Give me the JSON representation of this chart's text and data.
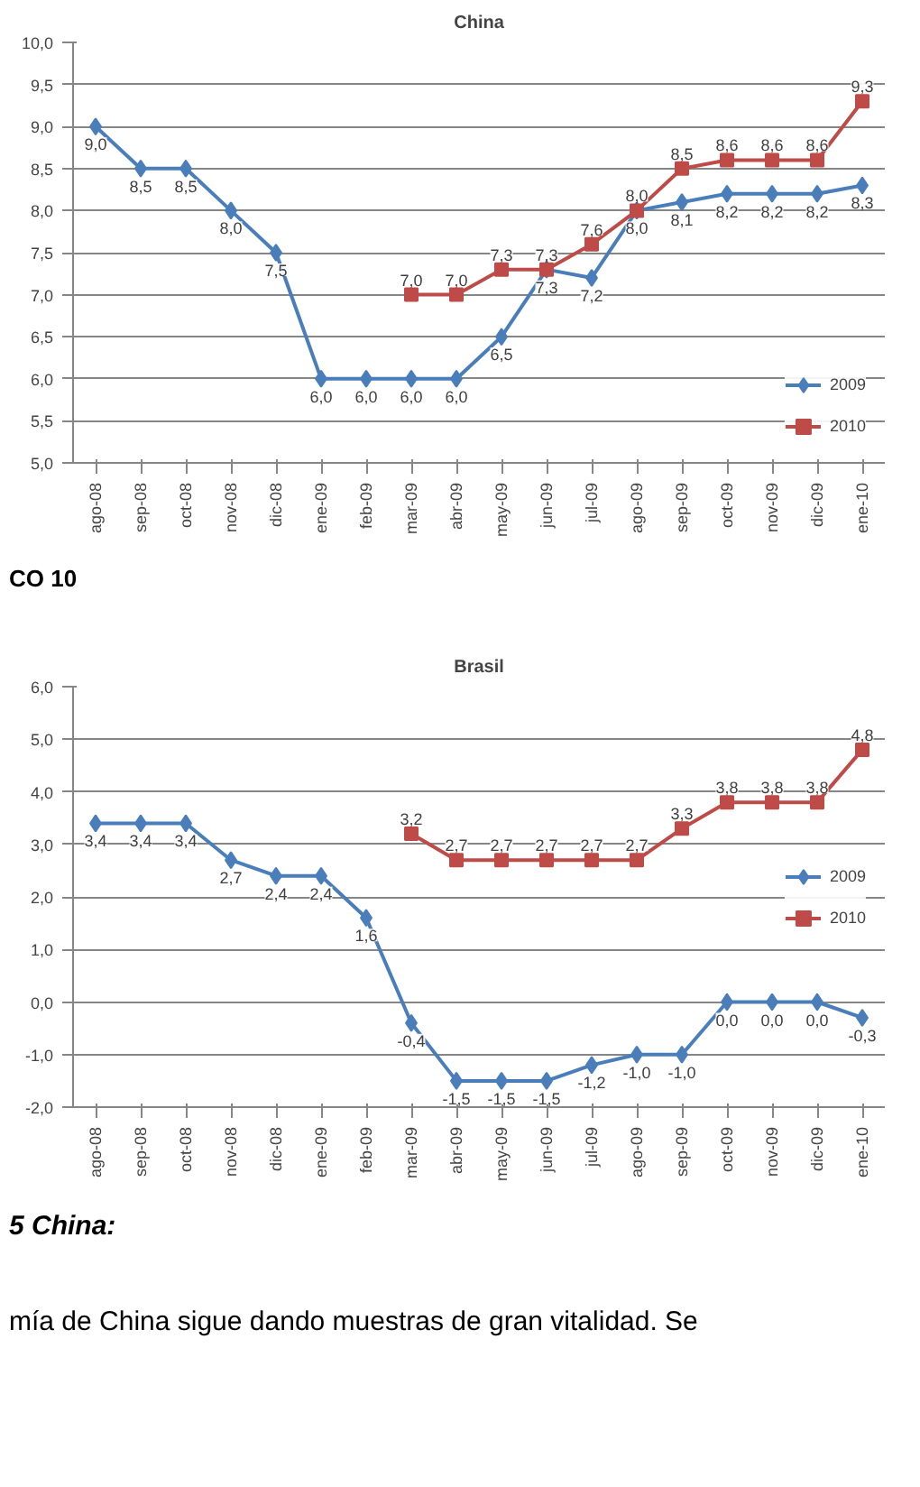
{
  "chart_data": [
    {
      "type": "line",
      "title": "China",
      "categories": [
        "ago-08",
        "sep-08",
        "oct-08",
        "nov-08",
        "dic-08",
        "ene-09",
        "feb-09",
        "mar-09",
        "abr-09",
        "may-09",
        "jun-09",
        "jul-09",
        "ago-09",
        "sep-09",
        "oct-09",
        "nov-09",
        "dic-09",
        "ene-10"
      ],
      "series": [
        {
          "name": "2009",
          "color": "#4a7ebb",
          "marker": "diamond",
          "values": [
            9.0,
            8.5,
            8.5,
            8.0,
            7.5,
            6.0,
            6.0,
            6.0,
            6.0,
            6.5,
            7.3,
            7.2,
            8.0,
            8.1,
            8.2,
            8.2,
            8.2,
            8.3
          ],
          "value_labels": [
            "9,0",
            "8,5",
            "8,5",
            "8,0",
            "7,5",
            "6,0",
            "6,0",
            "6,0",
            "6,0",
            "6,5",
            "7,3",
            "7,2",
            "8,0",
            "8,1",
            "8,2",
            "8,2",
            "8,2",
            "8,3"
          ]
        },
        {
          "name": "2010",
          "color": "#be4b48",
          "marker": "square",
          "values": [
            null,
            null,
            null,
            null,
            null,
            null,
            null,
            7.0,
            7.0,
            7.3,
            7.3,
            7.6,
            8.0,
            8.5,
            8.6,
            8.6,
            8.6,
            9.3
          ],
          "value_labels": [
            null,
            null,
            null,
            null,
            null,
            null,
            null,
            "7,0",
            "7,0",
            "7,3",
            "7,3",
            "7,6",
            "8,0",
            "8,5",
            "8,6",
            "8,6",
            "8,6",
            "9,3"
          ]
        }
      ],
      "ylim": [
        5.0,
        10.0
      ],
      "yticks": [
        {
          "value": 5.0,
          "label": "5,0"
        },
        {
          "value": 5.5,
          "label": "5,5"
        },
        {
          "value": 6.0,
          "label": "6,0"
        },
        {
          "value": 6.5,
          "label": "6,5"
        },
        {
          "value": 7.0,
          "label": "7,0"
        },
        {
          "value": 7.5,
          "label": "7,5"
        },
        {
          "value": 8.0,
          "label": "8,0"
        },
        {
          "value": 8.5,
          "label": "8,5"
        },
        {
          "value": 9.0,
          "label": "9,0"
        },
        {
          "value": 9.5,
          "label": "9,5"
        },
        {
          "value": 10.0,
          "label": "10,0"
        }
      ],
      "grid": "y",
      "legend": "bottom right",
      "annotations": [
        "CO 10"
      ]
    },
    {
      "type": "line",
      "title": "Brasil",
      "categories": [
        "ago-08",
        "sep-08",
        "oct-08",
        "nov-08",
        "dic-08",
        "ene-09",
        "feb-09",
        "mar-09",
        "abr-09",
        "may-09",
        "jun-09",
        "jul-09",
        "ago-09",
        "sep-09",
        "oct-09",
        "nov-09",
        "dic-09",
        "ene-10"
      ],
      "series": [
        {
          "name": "2009",
          "color": "#4a7ebb",
          "marker": "diamond",
          "values": [
            3.4,
            3.4,
            3.4,
            2.7,
            2.4,
            2.4,
            1.6,
            -0.4,
            -1.5,
            -1.5,
            -1.5,
            -1.2,
            -1.0,
            -1.0,
            0.0,
            0.0,
            0.0,
            -0.3
          ],
          "value_labels": [
            "3,4",
            "3,4",
            "3,4",
            "2,7",
            "2,4",
            "2,4",
            "1,6",
            "-0,4",
            "-1,5",
            "-1,5",
            "-1,5",
            "-1,2",
            "-1,0",
            "-1,0",
            "0,0",
            "0,0",
            "0,0",
            "-0,3"
          ]
        },
        {
          "name": "2010",
          "color": "#be4b48",
          "marker": "square",
          "values": [
            null,
            null,
            null,
            null,
            null,
            null,
            null,
            3.2,
            2.7,
            2.7,
            2.7,
            2.7,
            2.7,
            3.3,
            3.8,
            3.8,
            3.8,
            4.8
          ],
          "value_labels": [
            null,
            null,
            null,
            null,
            null,
            null,
            null,
            "3,2",
            "2,7",
            "2,7",
            "2,7",
            "2,7",
            "2,7",
            "3,3",
            "3,8",
            "3,8",
            "3,8",
            "4,8"
          ]
        }
      ],
      "ylim": [
        -2.0,
        6.0
      ],
      "yticks": [
        {
          "value": -2.0,
          "label": "-2,0"
        },
        {
          "value": -1.0,
          "label": "-1,0"
        },
        {
          "value": 0.0,
          "label": "0,0"
        },
        {
          "value": 1.0,
          "label": "1,0"
        },
        {
          "value": 2.0,
          "label": "2,0"
        },
        {
          "value": 3.0,
          "label": "3,0"
        },
        {
          "value": 4.0,
          "label": "4,0"
        },
        {
          "value": 5.0,
          "label": "5,0"
        },
        {
          "value": 6.0,
          "label": "6,0"
        }
      ],
      "grid": "y",
      "legend": "right",
      "annotations": [
        "5 China:",
        "mía de China sigue dando muestras de gran vitalidad. Se"
      ]
    }
  ]
}
